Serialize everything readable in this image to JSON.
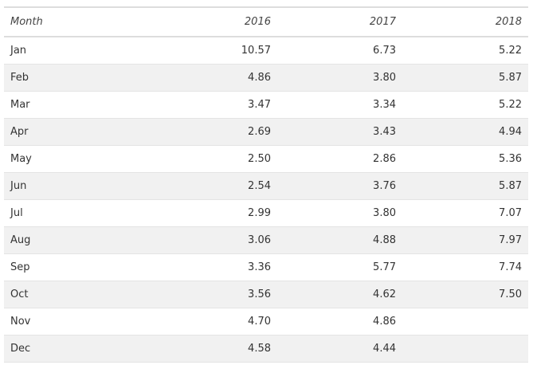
{
  "chart_data": {
    "type": "table",
    "columns": [
      "Month",
      "2016",
      "2017",
      "2018"
    ],
    "rows": [
      {
        "month": "Jan",
        "y2016": "10.57",
        "y2017": "6.73",
        "y2018": "5.22"
      },
      {
        "month": "Feb",
        "y2016": "4.86",
        "y2017": "3.80",
        "y2018": "5.87"
      },
      {
        "month": "Mar",
        "y2016": "3.47",
        "y2017": "3.34",
        "y2018": "5.22"
      },
      {
        "month": "Apr",
        "y2016": "2.69",
        "y2017": "3.43",
        "y2018": "4.94"
      },
      {
        "month": "May",
        "y2016": "2.50",
        "y2017": "2.86",
        "y2018": "5.36"
      },
      {
        "month": "Jun",
        "y2016": "2.54",
        "y2017": "3.76",
        "y2018": "5.87"
      },
      {
        "month": "Jul",
        "y2016": "2.99",
        "y2017": "3.80",
        "y2018": "7.07"
      },
      {
        "month": "Aug",
        "y2016": "3.06",
        "y2017": "4.88",
        "y2018": "7.97"
      },
      {
        "month": "Sep",
        "y2016": "3.36",
        "y2017": "5.77",
        "y2018": "7.74"
      },
      {
        "month": "Oct",
        "y2016": "3.56",
        "y2017": "4.62",
        "y2018": "7.50"
      },
      {
        "month": "Nov",
        "y2016": "4.70",
        "y2017": "4.86",
        "y2018": ""
      },
      {
        "month": "Dec",
        "y2016": "4.58",
        "y2017": "4.44",
        "y2018": ""
      }
    ]
  }
}
